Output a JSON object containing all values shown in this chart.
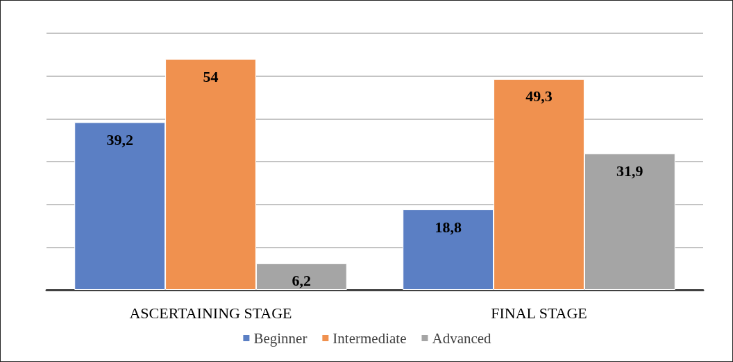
{
  "chart_data": {
    "type": "bar",
    "categories": [
      "ASCERTAINING STAGE",
      "FINAL STAGE"
    ],
    "series": [
      {
        "name": "Beginner",
        "color": "#5b7fc4",
        "values": [
          39.2,
          18.8
        ],
        "value_labels": [
          "39,2",
          "18,8"
        ]
      },
      {
        "name": "Intermediate",
        "color": "#f0914f",
        "values": [
          54,
          49.3
        ],
        "value_labels": [
          "54",
          "49,3"
        ]
      },
      {
        "name": "Advanced",
        "color": "#a5a5a5",
        "values": [
          6.2,
          31.9
        ],
        "value_labels": [
          "6,2",
          "31,9"
        ]
      }
    ],
    "ylim": [
      0,
      60
    ],
    "yticks": [
      0,
      10,
      20,
      30,
      40,
      50,
      60
    ],
    "grid": "y",
    "legend": "bottom",
    "tick_labels": "x"
  }
}
